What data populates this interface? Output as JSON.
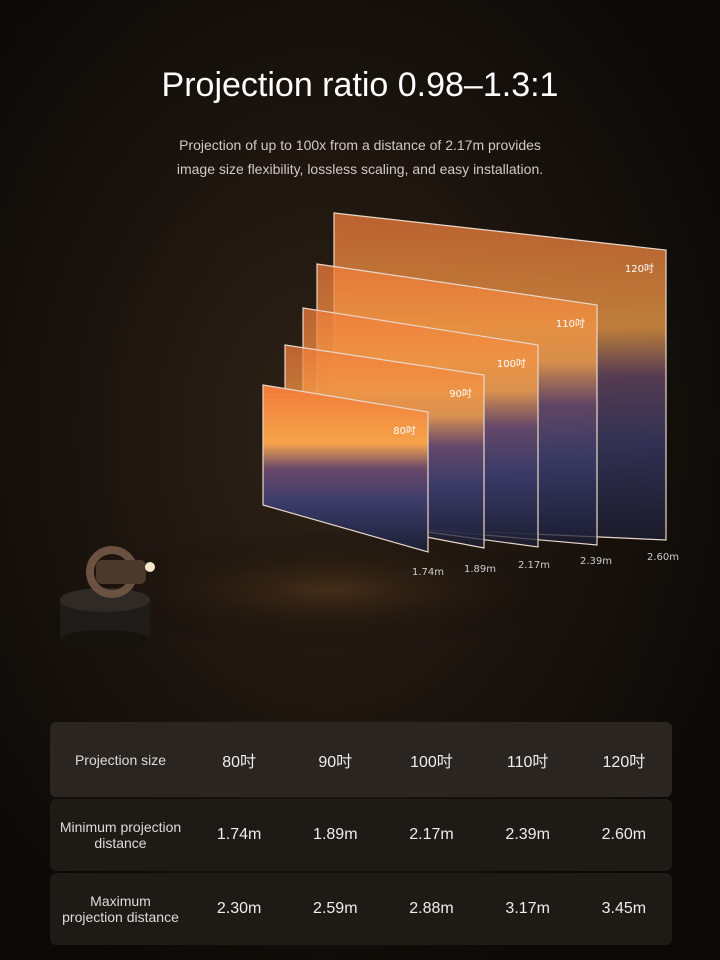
{
  "header": {
    "title": "Projection ratio 0.98–1.3:1",
    "subtitle_lines": [
      "Projection of up to 100x from a distance of 2.17m provides",
      "image size flexibility, lossless scaling, and easy installation."
    ]
  },
  "illustration": {
    "screens": [
      {
        "label": "80吋",
        "distance": "1.74m"
      },
      {
        "label": "90吋",
        "distance": "1.89m"
      },
      {
        "label": "100吋",
        "distance": "2.17m"
      },
      {
        "label": "110吋",
        "distance": "2.39m"
      },
      {
        "label": "120吋",
        "distance": "2.60m"
      }
    ]
  },
  "table": {
    "header": [
      "Projection size",
      "80吋",
      "90吋",
      "100吋",
      "110吋",
      "120吋"
    ],
    "rows": [
      [
        "Minimum projection distance",
        "1.74m",
        "1.89m",
        "2.17m",
        "2.39m",
        "2.60m"
      ],
      [
        "Maximum projection distance",
        "2.30m",
        "2.59m",
        "2.88m",
        "3.17m",
        "3.45m"
      ]
    ]
  }
}
